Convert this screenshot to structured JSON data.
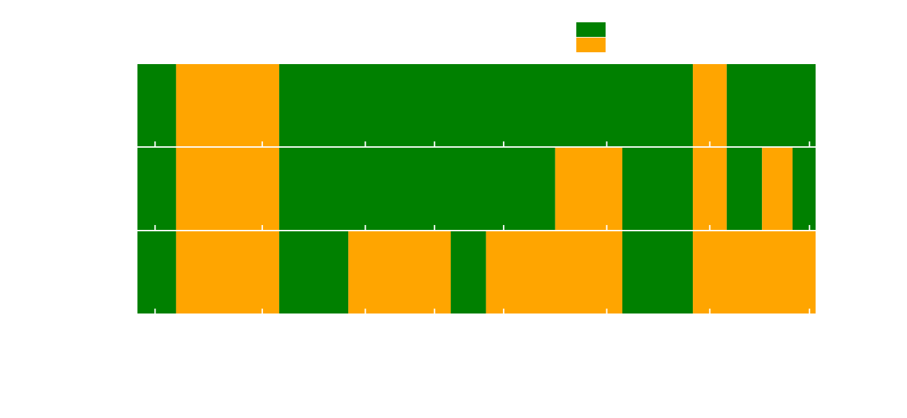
{
  "chart_data": {
    "type": "timeline",
    "title": "",
    "xlabel": "",
    "ylabel": "",
    "xlim": [
      0,
      100
    ],
    "ticks": [
      2.6,
      18.4,
      33.6,
      43.8,
      54.0,
      69.2,
      84.4,
      99.1
    ],
    "grid": false,
    "legend": {
      "placement": "top-center",
      "entries": [
        {
          "label": "",
          "color": "#008000"
        },
        {
          "label": "",
          "color": "#ffa500"
        }
      ]
    },
    "rows": [
      {
        "label": "",
        "segments": [
          {
            "start": 0.0,
            "end": 5.7,
            "state": 0
          },
          {
            "start": 5.7,
            "end": 20.9,
            "state": 1
          },
          {
            "start": 20.9,
            "end": 81.9,
            "state": 0
          },
          {
            "start": 81.9,
            "end": 86.9,
            "state": 1
          },
          {
            "start": 86.9,
            "end": 100.0,
            "state": 0
          }
        ]
      },
      {
        "label": "",
        "segments": [
          {
            "start": 0.0,
            "end": 5.7,
            "state": 0
          },
          {
            "start": 5.7,
            "end": 20.9,
            "state": 1
          },
          {
            "start": 20.9,
            "end": 61.6,
            "state": 0
          },
          {
            "start": 61.6,
            "end": 71.5,
            "state": 1
          },
          {
            "start": 71.5,
            "end": 81.9,
            "state": 0
          },
          {
            "start": 81.9,
            "end": 86.9,
            "state": 1
          },
          {
            "start": 86.9,
            "end": 92.1,
            "state": 0
          },
          {
            "start": 92.1,
            "end": 96.6,
            "state": 1
          },
          {
            "start": 96.6,
            "end": 100.0,
            "state": 0
          }
        ]
      },
      {
        "label": "",
        "segments": [
          {
            "start": 0.0,
            "end": 5.7,
            "state": 0
          },
          {
            "start": 5.7,
            "end": 20.9,
            "state": 1
          },
          {
            "start": 20.9,
            "end": 31.1,
            "state": 0
          },
          {
            "start": 31.1,
            "end": 46.2,
            "state": 1
          },
          {
            "start": 46.2,
            "end": 51.4,
            "state": 0
          },
          {
            "start": 51.4,
            "end": 71.5,
            "state": 1
          },
          {
            "start": 71.5,
            "end": 81.9,
            "state": 0
          },
          {
            "start": 81.9,
            "end": 100.0,
            "state": 1
          }
        ]
      }
    ]
  }
}
